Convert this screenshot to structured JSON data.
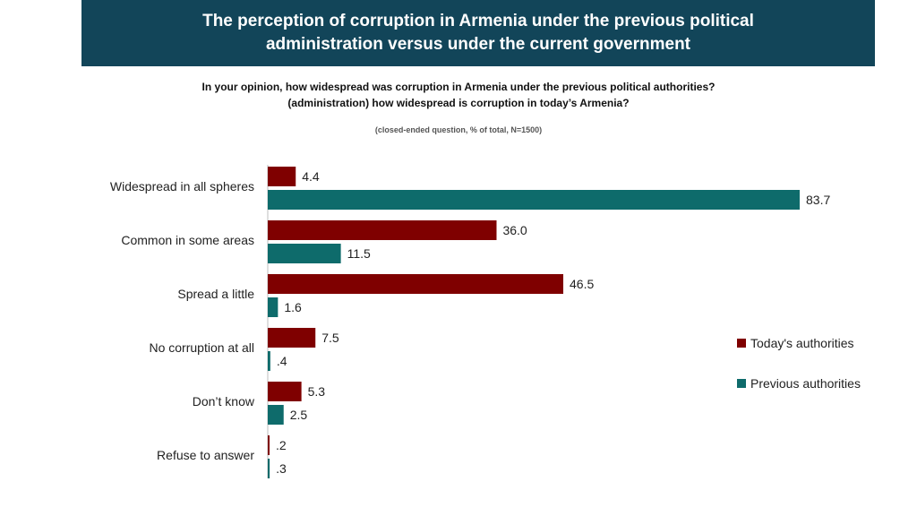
{
  "header": {
    "title_line1": "The perception of corruption in Armenia under the previous political",
    "title_line2": "administration versus under the current government"
  },
  "question": {
    "line1": "In your opinion, how widespread was corruption in Armenia under the previous political authorities?",
    "line2": "(administration) how widespread is corruption in today’s Armenia?"
  },
  "note": "(closed-ended question, % of total, N=1500)",
  "chart_data": {
    "type": "bar",
    "orientation": "horizontal",
    "categories": [
      "Widespread in all spheres",
      "Common in some areas",
      "Spread a little",
      "No corruption at all",
      "Don’t know",
      "Refuse to answer"
    ],
    "series": [
      {
        "name": "Today's authorities",
        "color": "#7f0000",
        "values": [
          4.4,
          36.0,
          46.5,
          7.5,
          5.3,
          0.2
        ],
        "labels": [
          "4.4",
          "36.0",
          "46.5",
          "7.5",
          "5.3",
          ".2"
        ]
      },
      {
        "name": "Previous authorities",
        "color": "#0e6b6b",
        "values": [
          83.7,
          11.5,
          1.6,
          0.4,
          2.5,
          0.3
        ],
        "labels": [
          "83.7",
          "11.5",
          "1.6",
          ".4",
          "2.5",
          ".3"
        ]
      }
    ],
    "xlim": [
      0,
      85
    ],
    "grid": false,
    "legend_position": "right"
  }
}
